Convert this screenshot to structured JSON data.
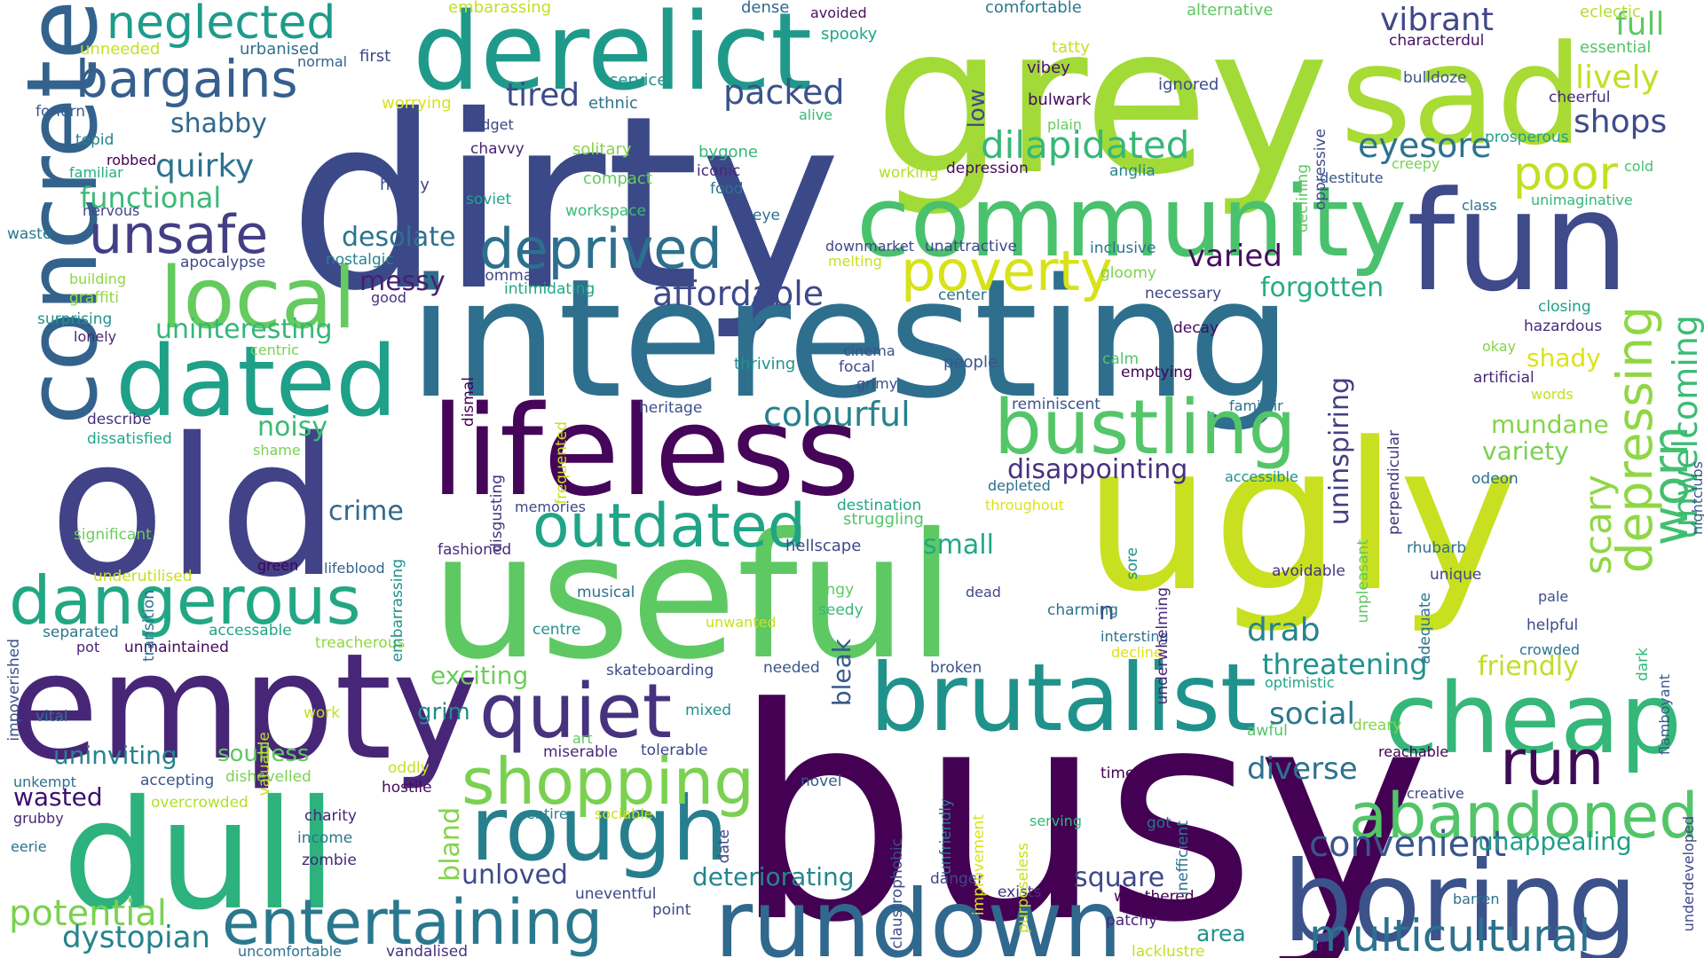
{
  "words": [
    {
      "text": "busy",
      "color": "#440154"
    },
    {
      "text": "dirty",
      "color": "#3b4989"
    },
    {
      "text": "grey",
      "color": "#a2da37"
    },
    {
      "text": "interesting",
      "color": "#2e6f8e"
    },
    {
      "text": "old",
      "color": "#414287"
    },
    {
      "text": "useful",
      "color": "#5ec962"
    },
    {
      "text": "ugly",
      "color": "#c8e020"
    },
    {
      "text": "empty",
      "color": "#482677"
    },
    {
      "text": "sad",
      "color": "#a8db34"
    },
    {
      "text": "fun",
      "color": "#3e4a89"
    },
    {
      "text": "lifeless",
      "color": "#450559"
    },
    {
      "text": "dull",
      "color": "#2db27d"
    },
    {
      "text": "community",
      "color": "#4ac16d"
    },
    {
      "text": "derelict",
      "color": "#1f9a8a"
    },
    {
      "text": "brutalist",
      "color": "#20928c"
    },
    {
      "text": "boring",
      "color": "#3b528b"
    },
    {
      "text": "rundown",
      "color": "#31688e"
    },
    {
      "text": "cheap",
      "color": "#35b779"
    },
    {
      "text": "concrete",
      "color": "#33638d"
    },
    {
      "text": "rough",
      "color": "#277f8e"
    },
    {
      "text": "dated",
      "color": "#1fa088"
    },
    {
      "text": "local",
      "color": "#65cb5e"
    },
    {
      "text": "bustling",
      "color": "#54c568"
    },
    {
      "text": "dangerous",
      "color": "#22a785"
    },
    {
      "text": "quiet",
      "color": "#46337e"
    },
    {
      "text": "outdated",
      "color": "#20a486"
    },
    {
      "text": "shopping",
      "color": "#7ad151"
    },
    {
      "text": "abandoned",
      "color": "#52c569"
    },
    {
      "text": "entertaining",
      "color": "#2a788e"
    },
    {
      "text": "bargains",
      "color": "#355f8d"
    },
    {
      "text": "unsafe",
      "color": "#433e85"
    },
    {
      "text": "deprived",
      "color": "#2d708e"
    },
    {
      "text": "poverty",
      "color": "#d8e219"
    },
    {
      "text": "depressing",
      "color": "#8fd744"
    },
    {
      "text": "neglected",
      "color": "#1e9b8a"
    },
    {
      "text": "run",
      "color": "#3f0a55"
    },
    {
      "text": "multicultural",
      "color": "#2c728e"
    },
    {
      "text": "worn",
      "color": "#44bf70"
    },
    {
      "text": "dilapidated",
      "color": "#35b779"
    },
    {
      "text": "poor",
      "color": "#c2df23"
    },
    {
      "text": "colourful",
      "color": "#26828e"
    },
    {
      "text": "convenient",
      "color": "#39568c"
    },
    {
      "text": "unwelcoming",
      "color": "#3bbb75"
    },
    {
      "text": "eyesore",
      "color": "#2c738e"
    },
    {
      "text": "potential",
      "color": "#7ad151"
    },
    {
      "text": "dystopian",
      "color": "#26828e"
    },
    {
      "text": "packed",
      "color": "#3b528b"
    },
    {
      "text": "affordable",
      "color": "#3e4989"
    },
    {
      "text": "tired",
      "color": "#3e4a89"
    },
    {
      "text": "quirky",
      "color": "#2c728e"
    },
    {
      "text": "functional",
      "color": "#3aba76"
    },
    {
      "text": "shabby",
      "color": "#31688e"
    },
    {
      "text": "vibrant",
      "color": "#404688"
    },
    {
      "text": "lively",
      "color": "#c2df23"
    },
    {
      "text": "shops",
      "color": "#3e4c8a"
    },
    {
      "text": "full",
      "color": "#5ec962"
    },
    {
      "text": "varied",
      "color": "#470d60"
    },
    {
      "text": "forgotten",
      "color": "#27ad81"
    },
    {
      "text": "desolate",
      "color": "#2c738e"
    },
    {
      "text": "messy",
      "color": "#481f70"
    },
    {
      "text": "uninteresting",
      "color": "#35b779"
    },
    {
      "text": "noisy",
      "color": "#3aba76"
    },
    {
      "text": "crime",
      "color": "#31688e"
    },
    {
      "text": "disappointing",
      "color": "#46327e"
    },
    {
      "text": "small",
      "color": "#22a785"
    },
    {
      "text": "mundane",
      "color": "#84d44b"
    },
    {
      "text": "variety",
      "color": "#7ad151"
    },
    {
      "text": "scary",
      "color": "#8fd744"
    },
    {
      "text": "shady",
      "color": "#dde318"
    },
    {
      "text": "drab",
      "color": "#25848e"
    },
    {
      "text": "diverse",
      "color": "#2c728e"
    },
    {
      "text": "social",
      "color": "#2a788e"
    },
    {
      "text": "threatening",
      "color": "#20928c"
    },
    {
      "text": "friendly",
      "color": "#bddf26"
    },
    {
      "text": "square",
      "color": "#3e4989"
    },
    {
      "text": "deteriorating",
      "color": "#24868e"
    },
    {
      "text": "unloved",
      "color": "#3e4989"
    },
    {
      "text": "uninspiring",
      "color": "#433e85"
    },
    {
      "text": "bland",
      "color": "#84d44b"
    },
    {
      "text": "bleak",
      "color": "#38598c"
    },
    {
      "text": "exciting",
      "color": "#6ccd5a"
    },
    {
      "text": "grim",
      "color": "#228c8d"
    },
    {
      "text": "soulless",
      "color": "#5ec962"
    },
    {
      "text": "uninviting",
      "color": "#25848e"
    },
    {
      "text": "wasted",
      "color": "#3b0f70"
    },
    {
      "text": "unappealing",
      "color": "#1f9e89"
    },
    {
      "text": "n",
      "color": "#3b528b"
    },
    {
      "text": "embarassing",
      "color": "#c2df23"
    },
    {
      "text": "dense",
      "color": "#31688e"
    },
    {
      "text": "avoided",
      "color": "#471063"
    },
    {
      "text": "comfortable",
      "color": "#2a788e"
    },
    {
      "text": "alternative",
      "color": "#5ec962"
    },
    {
      "text": "eclectic",
      "color": "#b5de2b"
    },
    {
      "text": "unneeded",
      "color": "#c8e020"
    },
    {
      "text": "urbanised",
      "color": "#2c728e"
    },
    {
      "text": "normal",
      "color": "#355f8d"
    },
    {
      "text": "first",
      "color": "#3e4989"
    },
    {
      "text": "spooky",
      "color": "#22a785"
    },
    {
      "text": "tatty",
      "color": "#c8e020"
    },
    {
      "text": "characterdul",
      "color": "#471063"
    },
    {
      "text": "essential",
      "color": "#52c569"
    },
    {
      "text": "forlorn",
      "color": "#365c8d"
    },
    {
      "text": "worrying",
      "color": "#d8e219"
    },
    {
      "text": "ethnic",
      "color": "#2c728e"
    },
    {
      "text": "service",
      "color": "#20928c"
    },
    {
      "text": "vibey",
      "color": "#481467"
    },
    {
      "text": "bulwark",
      "color": "#460b5e"
    },
    {
      "text": "ignored",
      "color": "#3e4c8a"
    },
    {
      "text": "bulldoze",
      "color": "#39568c"
    },
    {
      "text": "cheerful",
      "color": "#472c7a"
    },
    {
      "text": "alive",
      "color": "#3aba76"
    },
    {
      "text": "budget",
      "color": "#3f4788"
    },
    {
      "text": "tepid",
      "color": "#25838e"
    },
    {
      "text": "robbed",
      "color": "#440154"
    },
    {
      "text": "familiar",
      "color": "#27ad81"
    },
    {
      "text": "nervous",
      "color": "#3f4788"
    },
    {
      "text": "chavvy",
      "color": "#482576"
    },
    {
      "text": "solitary",
      "color": "#84d44b"
    },
    {
      "text": "plain",
      "color": "#65cb5e"
    },
    {
      "text": "bygone",
      "color": "#35b779"
    },
    {
      "text": "iconic",
      "color": "#482878"
    },
    {
      "text": "food",
      "color": "#2c738e"
    },
    {
      "text": "working",
      "color": "#b5de2b"
    },
    {
      "text": "depression",
      "color": "#460b5e"
    },
    {
      "text": "anglia",
      "color": "#24868e"
    },
    {
      "text": "destitute",
      "color": "#39568c"
    },
    {
      "text": "creepy",
      "color": "#7ad151"
    },
    {
      "text": "prosperous",
      "color": "#1fa088"
    },
    {
      "text": "cold",
      "color": "#46c06f"
    },
    {
      "text": "class",
      "color": "#2c738e"
    },
    {
      "text": "unimaginative",
      "color": "#35b779"
    },
    {
      "text": "handy",
      "color": "#3f4788"
    },
    {
      "text": "soviet",
      "color": "#20a486"
    },
    {
      "text": "compact",
      "color": "#65cb5e"
    },
    {
      "text": "workspace",
      "color": "#3aba76"
    },
    {
      "text": "eye",
      "color": "#2c728e"
    },
    {
      "text": "waste",
      "color": "#2a788e"
    },
    {
      "text": "building",
      "color": "#8fd744"
    },
    {
      "text": "apocalypse",
      "color": "#3e4989"
    },
    {
      "text": "nostalgic",
      "color": "#26828e"
    },
    {
      "text": "downmarket",
      "color": "#3f4788"
    },
    {
      "text": "unattractive",
      "color": "#3e4989"
    },
    {
      "text": "inclusive",
      "color": "#2c728e"
    },
    {
      "text": "melting",
      "color": "#c8e020"
    },
    {
      "text": "gloomy",
      "color": "#7ad151"
    },
    {
      "text": "graffiti",
      "color": "#8fd744"
    },
    {
      "text": "commas",
      "color": "#3f4788"
    },
    {
      "text": "intimidating",
      "color": "#22a785"
    },
    {
      "text": "good",
      "color": "#46327e"
    },
    {
      "text": "center",
      "color": "#2c738e"
    },
    {
      "text": "necessary",
      "color": "#3f4788"
    },
    {
      "text": "surprising",
      "color": "#20928c"
    },
    {
      "text": "lonely",
      "color": "#482677"
    },
    {
      "text": "centric",
      "color": "#7ad151"
    },
    {
      "text": "decay",
      "color": "#460b5e"
    },
    {
      "text": "closing",
      "color": "#1fa088"
    },
    {
      "text": "hazardous",
      "color": "#472c7a"
    },
    {
      "text": "okay",
      "color": "#84d44b"
    },
    {
      "text": "thriving",
      "color": "#20928c"
    },
    {
      "text": "cinema",
      "color": "#3b528b"
    },
    {
      "text": "focal",
      "color": "#3e4989"
    },
    {
      "text": "people",
      "color": "#39568c"
    },
    {
      "text": "calm",
      "color": "#52c569"
    },
    {
      "text": "emptying",
      "color": "#440154"
    },
    {
      "text": "grimy",
      "color": "#3e4c8a"
    },
    {
      "text": "artificial",
      "color": "#482878"
    },
    {
      "text": "words",
      "color": "#c2df23"
    },
    {
      "text": "reminiscent",
      "color": "#3b528b"
    },
    {
      "text": "familair",
      "color": "#2c728e"
    },
    {
      "text": "describe",
      "color": "#46327e"
    },
    {
      "text": "dissatisfied",
      "color": "#22a785"
    },
    {
      "text": "heritage",
      "color": "#3b528b"
    },
    {
      "text": "shame",
      "color": "#7ad151"
    },
    {
      "text": "accessible",
      "color": "#20928c"
    },
    {
      "text": "depleted",
      "color": "#2c728e"
    },
    {
      "text": "throughout",
      "color": "#dde318"
    },
    {
      "text": "odeon",
      "color": "#2c738e"
    },
    {
      "text": "nightclubs",
      "color": "#38598c"
    },
    {
      "text": "memories",
      "color": "#3e4989"
    },
    {
      "text": "destination",
      "color": "#22a785"
    },
    {
      "text": "struggling",
      "color": "#52c569"
    },
    {
      "text": "significant",
      "color": "#6ccd5a"
    },
    {
      "text": "fashioned",
      "color": "#472c7a"
    },
    {
      "text": "hellscape",
      "color": "#3e4c8a"
    },
    {
      "text": "rhubarb",
      "color": "#2c728e"
    },
    {
      "text": "underutilised",
      "color": "#c8e020"
    },
    {
      "text": "green",
      "color": "#440154"
    },
    {
      "text": "lifeblood",
      "color": "#33638d"
    },
    {
      "text": "avoidable",
      "color": "#46337e"
    },
    {
      "text": "unique",
      "color": "#3f4788"
    },
    {
      "text": "musical",
      "color": "#2c728e"
    },
    {
      "text": "dingy",
      "color": "#5ec962"
    },
    {
      "text": "seedy",
      "color": "#35b779"
    },
    {
      "text": "dead",
      "color": "#3e4989"
    },
    {
      "text": "charming",
      "color": "#2c738e"
    },
    {
      "text": "pale",
      "color": "#3e4c8a"
    },
    {
      "text": "separated",
      "color": "#2a788e"
    },
    {
      "text": "accessable",
      "color": "#20a486"
    },
    {
      "text": "centre",
      "color": "#20928c"
    },
    {
      "text": "unwanted",
      "color": "#c8e020"
    },
    {
      "text": "intersting",
      "color": "#2c728e"
    },
    {
      "text": "helpful",
      "color": "#3e4989"
    },
    {
      "text": "pot",
      "color": "#482576"
    },
    {
      "text": "unmaintained",
      "color": "#460b5e"
    },
    {
      "text": "treacherous",
      "color": "#8fd744"
    },
    {
      "text": "decline",
      "color": "#dde318"
    },
    {
      "text": "crowded",
      "color": "#2c728e"
    },
    {
      "text": "broken",
      "color": "#3b528b"
    },
    {
      "text": "skateboarding",
      "color": "#3e4c8a"
    },
    {
      "text": "needed",
      "color": "#39568c"
    },
    {
      "text": "optimistic",
      "color": "#20a486"
    },
    {
      "text": "vital",
      "color": "#2c738e"
    },
    {
      "text": "work",
      "color": "#c2df23"
    },
    {
      "text": "mixed",
      "color": "#20928c"
    },
    {
      "text": "art",
      "color": "#5ec962"
    },
    {
      "text": "miserable",
      "color": "#482878"
    },
    {
      "text": "tolerable",
      "color": "#3f4788"
    },
    {
      "text": "awful",
      "color": "#52c569"
    },
    {
      "text": "dreary",
      "color": "#84d44b"
    },
    {
      "text": "reachable",
      "color": "#440154"
    },
    {
      "text": "creative",
      "color": "#3f4788"
    },
    {
      "text": "unkempt",
      "color": "#2c728e"
    },
    {
      "text": "accepting",
      "color": "#39568c"
    },
    {
      "text": "dishevelled",
      "color": "#7ad151"
    },
    {
      "text": "oddly",
      "color": "#c8e020"
    },
    {
      "text": "hostile",
      "color": "#460b5e"
    },
    {
      "text": "novel",
      "color": "#38598c"
    },
    {
      "text": "time",
      "color": "#440154"
    },
    {
      "text": "overcrowded",
      "color": "#b5de2b"
    },
    {
      "text": "charity",
      "color": "#482576"
    },
    {
      "text": "grubby",
      "color": "#482878"
    },
    {
      "text": "income",
      "color": "#2a788e"
    },
    {
      "text": "entire",
      "color": "#26828e"
    },
    {
      "text": "sociable",
      "color": "#c8e020"
    },
    {
      "text": "serving",
      "color": "#35b779"
    },
    {
      "text": "got",
      "color": "#2c738e"
    },
    {
      "text": "eerie",
      "color": "#2c738e"
    },
    {
      "text": "zombie",
      "color": "#482576"
    },
    {
      "text": "danger",
      "color": "#3f4788"
    },
    {
      "text": "weathered",
      "color": "#440154"
    },
    {
      "text": "uneventful",
      "color": "#3f4788"
    },
    {
      "text": "point",
      "color": "#3e4989"
    },
    {
      "text": "exists",
      "color": "#46337e"
    },
    {
      "text": "patchy",
      "color": "#482576"
    },
    {
      "text": "barren",
      "color": "#2c728e"
    },
    {
      "text": "area",
      "color": "#20928c"
    },
    {
      "text": "uncomfortable",
      "color": "#2c738e"
    },
    {
      "text": "vandalised",
      "color": "#46327e"
    },
    {
      "text": "lacklustre",
      "color": "#c2df23"
    },
    {
      "text": "impoverished",
      "color": "#3b528b"
    },
    {
      "text": "transition",
      "color": "#2c728e"
    },
    {
      "text": "embarrassing",
      "color": "#20928c"
    },
    {
      "text": "dismal",
      "color": "#440154"
    },
    {
      "text": "disgusting",
      "color": "#46327e"
    },
    {
      "text": "frequented",
      "color": "#c8e020"
    },
    {
      "text": "valuable",
      "color": "#c2df23"
    },
    {
      "text": "low",
      "color": "#3e4989"
    },
    {
      "text": "oppressive",
      "color": "#3e4c8a"
    },
    {
      "text": "declining",
      "color": "#5ec962"
    },
    {
      "text": "perpendicular",
      "color": "#46327e"
    },
    {
      "text": "sore",
      "color": "#20928c"
    },
    {
      "text": "underwhelming",
      "color": "#482576"
    },
    {
      "text": "unpleasant",
      "color": "#5ec962"
    },
    {
      "text": "adequate",
      "color": "#2c728e"
    },
    {
      "text": "dark",
      "color": "#35b779"
    },
    {
      "text": "flamboyant",
      "color": "#38598c"
    },
    {
      "text": "underdeveloped",
      "color": "#3f4788"
    },
    {
      "text": "date",
      "color": "#3e4989"
    },
    {
      "text": "claustrophobic",
      "color": "#3e4c8a"
    },
    {
      "text": "unfriendly",
      "color": "#2c728e"
    },
    {
      "text": "improvement",
      "color": "#dde318"
    },
    {
      "text": "purposeless",
      "color": "#c8e020"
    },
    {
      "text": "inefficient",
      "color": "#2c738e"
    }
  ]
}
